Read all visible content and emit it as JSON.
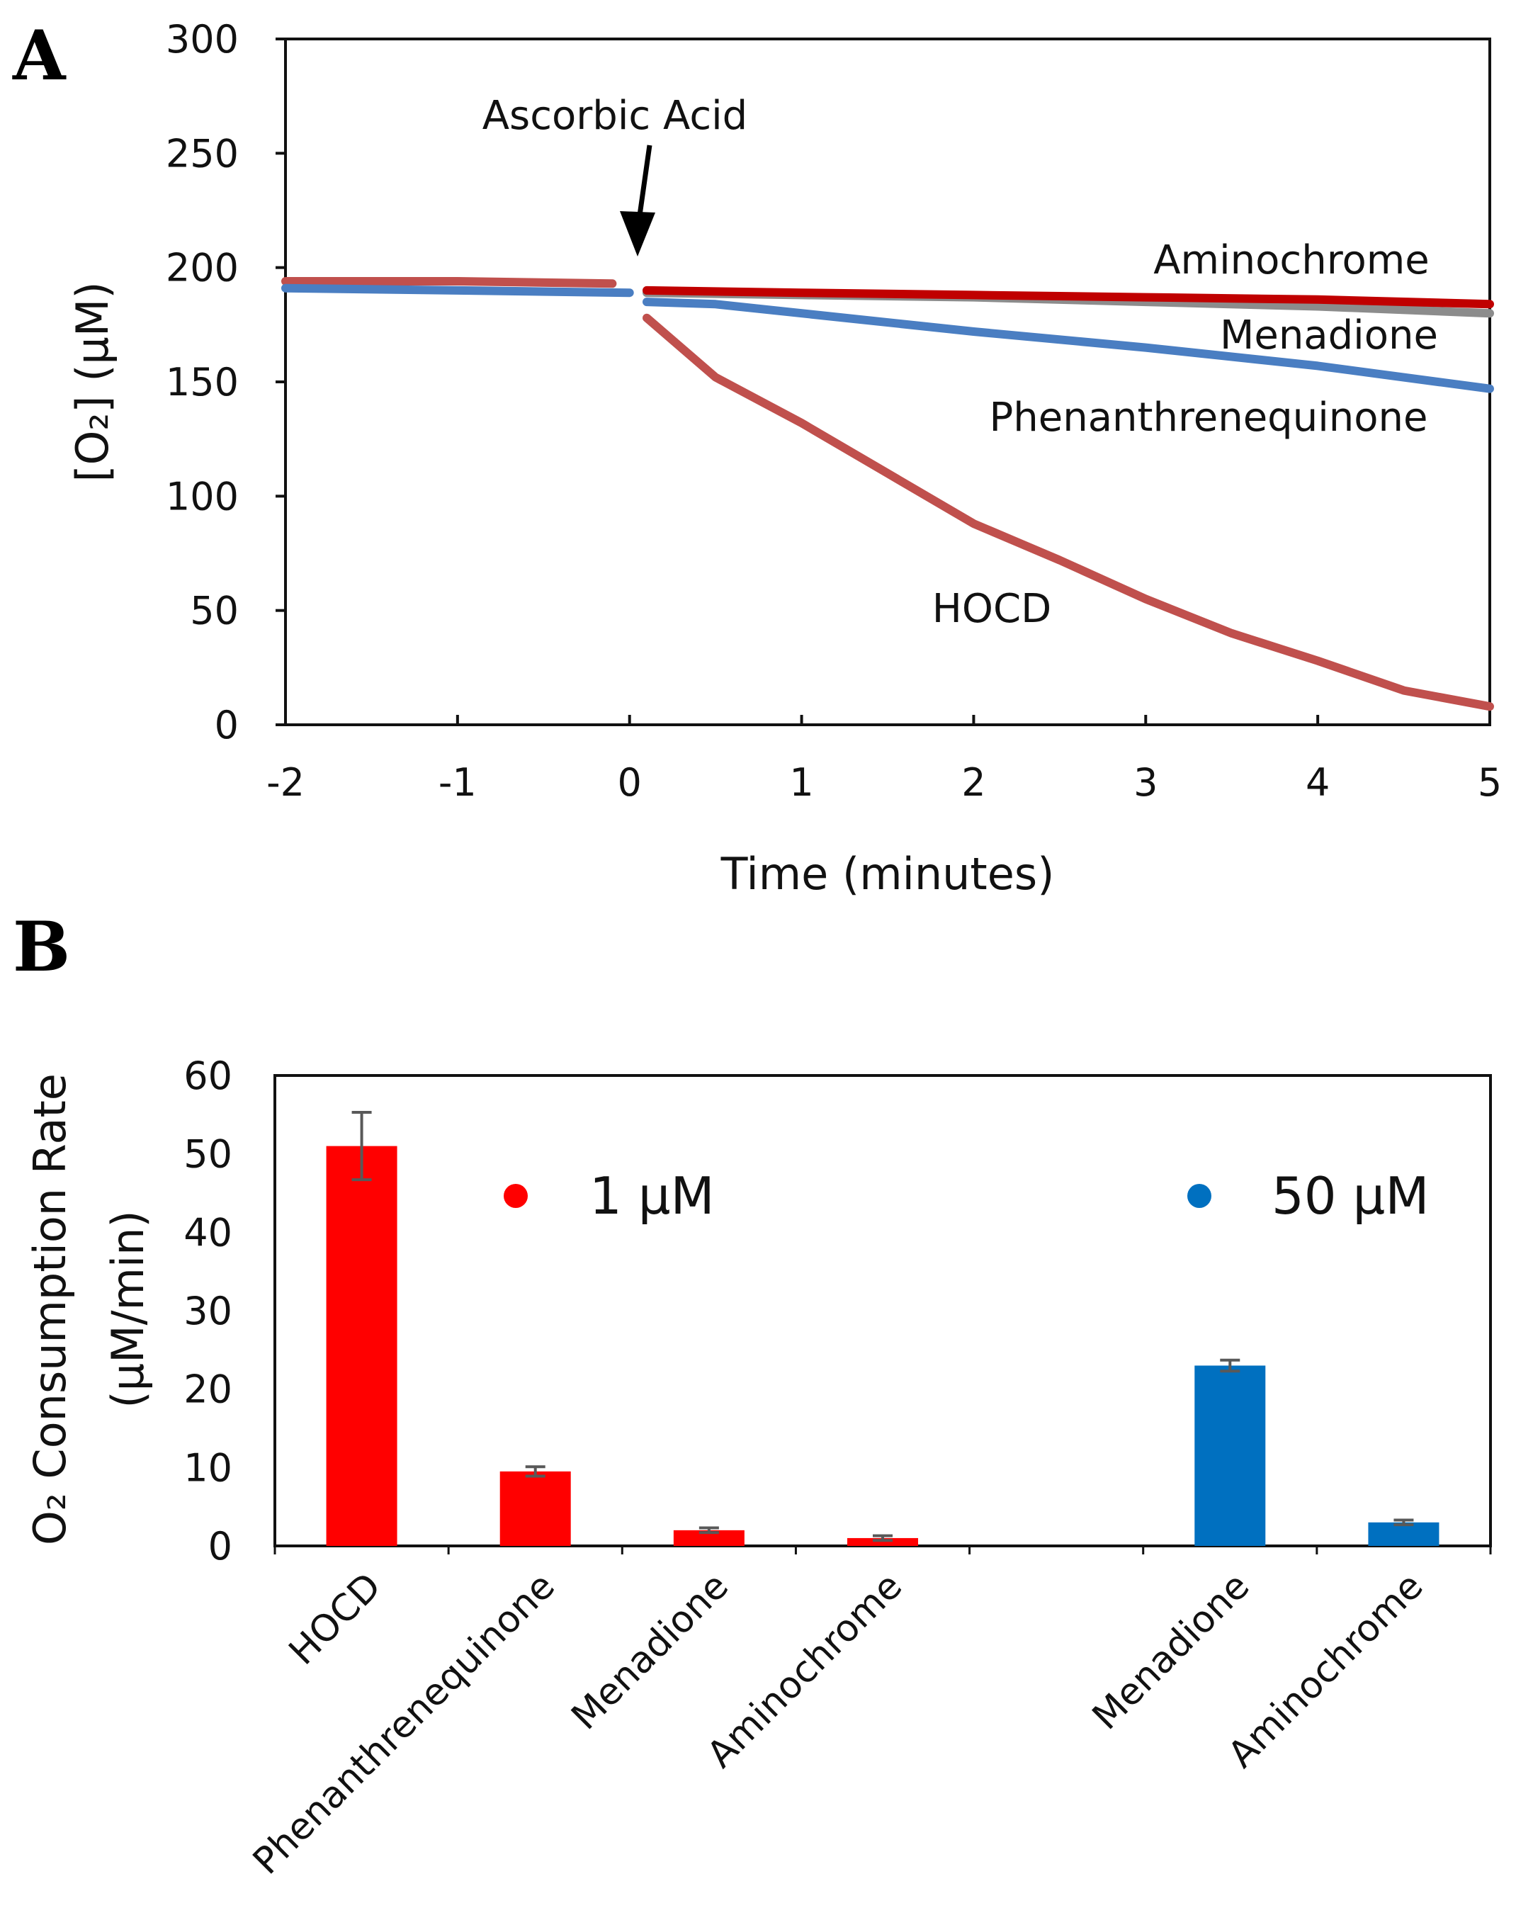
{
  "chart_data": [
    {
      "panel": "A",
      "type": "line",
      "xlabel": "Time (minutes)",
      "ylabel": "[O₂]  (µM)",
      "xlim": [
        -2,
        5
      ],
      "ylim": [
        0,
        300
      ],
      "xticks": [
        -2,
        -1,
        0,
        1,
        2,
        3,
        4,
        5
      ],
      "yticks": [
        0,
        50,
        100,
        150,
        200,
        250,
        300
      ],
      "annotation": "Ascorbic Acid",
      "annotation_x": 0,
      "series": [
        {
          "name": "Aminochrome",
          "color": "#c00000",
          "x": [
            0.1,
            1,
            2,
            3,
            4,
            5
          ],
          "y": [
            190,
            189,
            188,
            187,
            186,
            184
          ]
        },
        {
          "name": "Menadione",
          "color": "#8c8c8c",
          "x": [
            0.1,
            1,
            2,
            3,
            4,
            5
          ],
          "y": [
            189,
            188,
            187,
            185,
            183,
            180
          ]
        },
        {
          "name": "Phenanthrenequinone",
          "color": "#4a7ec2",
          "x": [
            0.1,
            0.5,
            1,
            2,
            3,
            4,
            5
          ],
          "y": [
            185,
            184,
            180,
            172,
            165,
            157,
            147
          ]
        },
        {
          "name": "HOCD",
          "color": "#c0504d",
          "x": [
            0.1,
            0.5,
            1,
            1.5,
            2,
            2.5,
            3,
            3.5,
            4,
            4.5,
            5
          ],
          "y": [
            178,
            152,
            132,
            110,
            88,
            72,
            55,
            40,
            28,
            15,
            8
          ]
        }
      ],
      "pre_injection": [
        {
          "name": "pre-red",
          "color": "#c0504d",
          "x": [
            -2,
            -1,
            -0.1
          ],
          "y": [
            194,
            194,
            193
          ]
        },
        {
          "name": "pre-blue",
          "color": "#4a7ec2",
          "x": [
            -2,
            -1,
            0
          ],
          "y": [
            191,
            190,
            189
          ]
        }
      ]
    },
    {
      "panel": "B",
      "type": "bar",
      "ylabel_line1": "O₂ Consumption Rate",
      "ylabel_line2": "(µM/min)",
      "ylim": [
        0,
        60
      ],
      "yticks": [
        0,
        10,
        20,
        30,
        40,
        50,
        60
      ],
      "categories": [
        "HOCD",
        "Phenanthrenequinone",
        "Menadione",
        "Aminochrome",
        "",
        "Menadione",
        "Aminochrome"
      ],
      "bars": [
        {
          "label": "HOCD",
          "value": 51,
          "error": 4.3,
          "group": "1 µM"
        },
        {
          "label": "Phenanthrenequinone",
          "value": 9.5,
          "error": 0.6,
          "group": "1 µM"
        },
        {
          "label": "Menadione",
          "value": 2.0,
          "error": 0.3,
          "group": "1 µM"
        },
        {
          "label": "Aminochrome",
          "value": 1.0,
          "error": 0.3,
          "group": "1 µM"
        },
        {
          "label": "Menadione",
          "value": 23,
          "error": 0.7,
          "group": "50 µM"
        },
        {
          "label": "Aminochrome",
          "value": 3.0,
          "error": 0.3,
          "group": "50 µM"
        }
      ],
      "legend": [
        {
          "name": "1 µM",
          "color": "#ff0000"
        },
        {
          "name": "50 µM",
          "color": "#0070c0"
        }
      ]
    }
  ],
  "panels": {
    "a_letter": "A",
    "b_letter": "B"
  }
}
